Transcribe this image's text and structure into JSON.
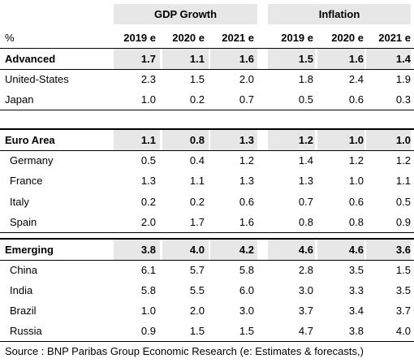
{
  "header": {
    "unit": "%",
    "gdp_title": "GDP Growth",
    "inflation_title": "Inflation",
    "years": [
      "2019 e",
      "2020 e",
      "2021 e",
      "2019 e",
      "2020 e",
      "2021 e"
    ]
  },
  "rows": [
    {
      "label": "Advanced",
      "values": [
        "1.7",
        "1.1",
        "1.6",
        "1.5",
        "1.6",
        "1.4"
      ]
    },
    {
      "label": "United-States",
      "values": [
        "2.3",
        "1.5",
        "2.0",
        "1.8",
        "2.4",
        "1.9"
      ]
    },
    {
      "label": "Japan",
      "values": [
        "1.0",
        "0.2",
        "0.7",
        "0.5",
        "0.6",
        "0.3"
      ]
    },
    {
      "label": "Euro Area",
      "values": [
        "1.1",
        "0.8",
        "1.3",
        "1.2",
        "1.0",
        "1.0"
      ]
    },
    {
      "label": "Germany",
      "values": [
        "0.5",
        "0.4",
        "1.2",
        "1.4",
        "1.2",
        "1.2"
      ]
    },
    {
      "label": "France",
      "values": [
        "1.3",
        "1.1",
        "1.3",
        "1.3",
        "1.0",
        "1.1"
      ]
    },
    {
      "label": "Italy",
      "values": [
        "0.2",
        "0.2",
        "0.6",
        "0.7",
        "0.6",
        "0.5"
      ]
    },
    {
      "label": "Spain",
      "values": [
        "2.0",
        "1.7",
        "1.6",
        "0.8",
        "0.8",
        "0.9"
      ]
    },
    {
      "label": "Emerging",
      "values": [
        "3.8",
        "4.0",
        "4.2",
        "4.6",
        "4.6",
        "3.6"
      ]
    },
    {
      "label": "China",
      "values": [
        "6.1",
        "5.7",
        "5.8",
        "2.8",
        "3.5",
        "1.5"
      ]
    },
    {
      "label": "India",
      "values": [
        "5.8",
        "5.5",
        "6.0",
        "3.0",
        "3.3",
        "3.5"
      ]
    },
    {
      "label": "Brazil",
      "values": [
        "1.0",
        "2.0",
        "3.0",
        "3.7",
        "3.4",
        "3.7"
      ]
    },
    {
      "label": "Russia",
      "values": [
        "0.9",
        "1.5",
        "1.5",
        "4.7",
        "3.8",
        "4.0"
      ]
    }
  ],
  "source": "Source : BNP Paribas Group Economic Research (e: Estimates & forecasts,)"
}
